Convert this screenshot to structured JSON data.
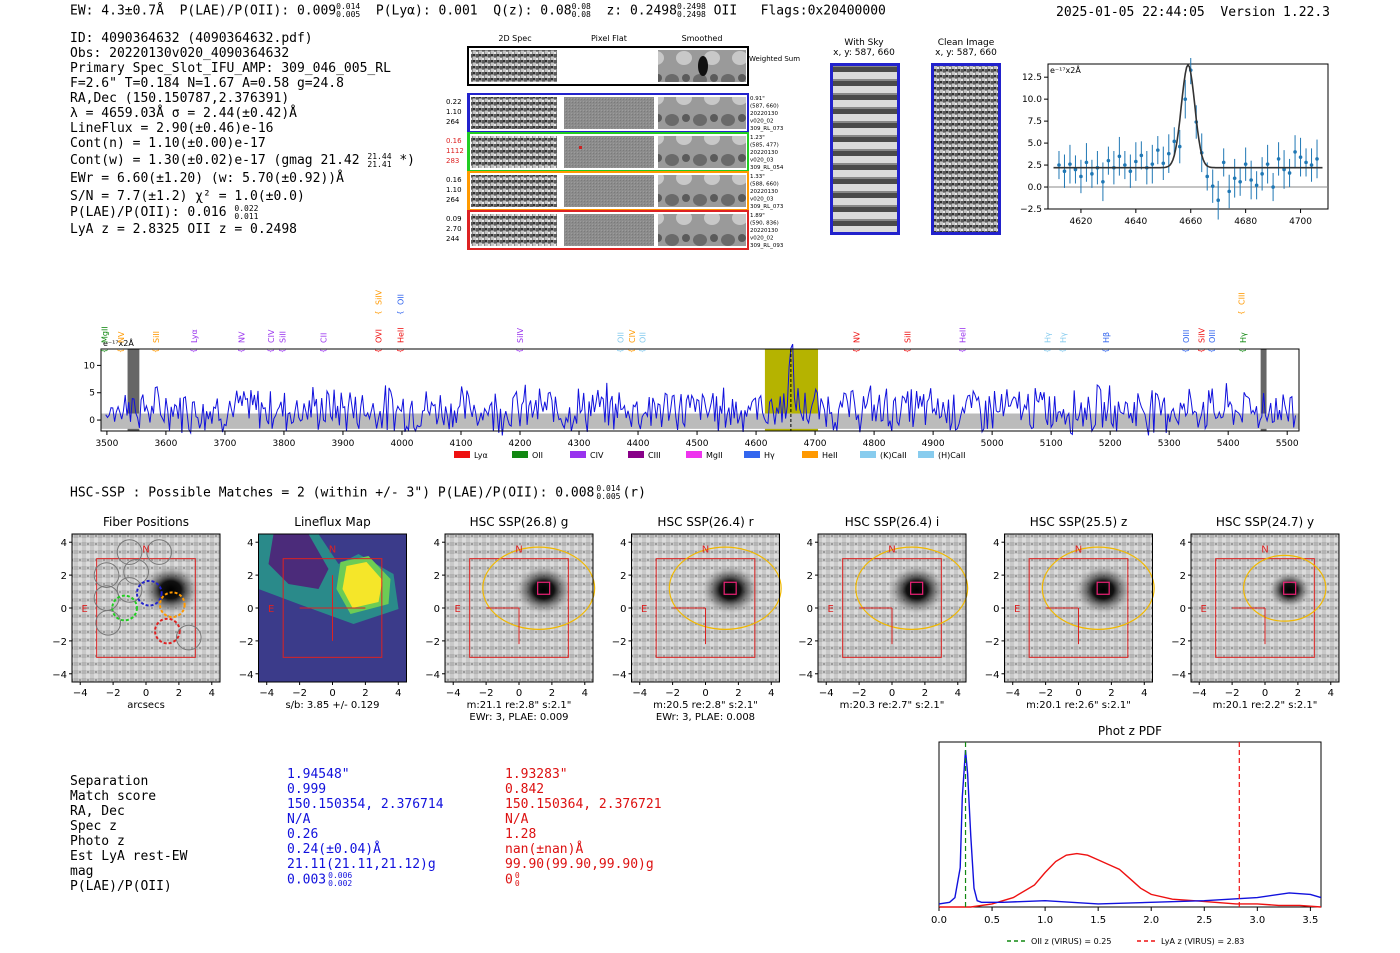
{
  "header": {
    "ew": "EW: 4.3±0.7Å",
    "plae_label": "P(LAE)/P(OII): 0.009",
    "plae_sup": "0.014",
    "plae_sub": "0.005",
    "plya": "P(Lyα): 0.001",
    "qz_label": "Q(z): 0.08",
    "qz_sup": "0.08",
    "qz_sub": "0.08",
    "z_label": "z: 0.2498",
    "z_sup": "0.2498",
    "z_sub": "0.2498",
    "z_line": "OII",
    "flags": "Flags:0x20400000",
    "timestamp": "2025-01-05 22:44:05",
    "version": "Version 1.22.3"
  },
  "info": {
    "id": "ID: 4090364632 (4090364632.pdf)",
    "obs": "Obs: 20220130v020_4090364632",
    "primary": "Primary Spec_Slot_IFU_AMP: 309_046_005_RL",
    "fparams": "F=2.6\"  T=0.184  N=1.67  A=0.58  g=24.8",
    "radec": "RA,Dec (150.150787,2.376391)",
    "lambda": "λ = 4659.03Å  σ = 2.44(±0.42)Å",
    "lineflux": "LineFlux = 2.90(±0.46)e-16",
    "contn": "Cont(n) = 1.10(±0.00)e-17",
    "contw": "Cont(w) = 1.30(±0.02)e-17 (gmag 21.42",
    "contw_sup": "21.44",
    "contw_sub": "21.41",
    "contw_end": "*)",
    "ewr": "EWr = 6.60(±1.20) (w: 5.70(±0.92))Å",
    "sn": "S/N = 7.7(±1.2)  χ² = 1.0(±0.0)",
    "plae": "P(LAE)/P(OII): 0.016",
    "plae_sup": "0.022",
    "plae_sub": "0.011",
    "lyaz": "LyA z = 2.8325  OII z = 0.2498"
  },
  "cutouts": {
    "col_headers": [
      "2D Spec",
      "Pixel Flat",
      "Smoothed"
    ],
    "weighted_sum": "Weighted Sum",
    "rows": [
      {
        "nums": [
          "0.22",
          "1.10",
          "264"
        ],
        "right": [
          "0.91\"",
          "(587, 660)",
          "20220130",
          "v020_02",
          "309_RL_073"
        ],
        "color": "#2222cc",
        "numcolor": "#000000"
      },
      {
        "nums": [
          "0.16",
          "1112",
          "283"
        ],
        "right": [
          "1.23\"",
          "(585, 477)",
          "20220130",
          "v020_03",
          "309_RL_054"
        ],
        "color": "#22cc22",
        "numcolor": "#dd2222"
      },
      {
        "nums": [
          "0.16",
          "1.10",
          "264"
        ],
        "right": [
          "1.33\"",
          "(588, 660)",
          "20220130",
          "v020_03",
          "309_RL_073"
        ],
        "color": "#ff9900",
        "numcolor": "#000000"
      },
      {
        "nums": [
          "0.09",
          "2.70",
          "244"
        ],
        "right": [
          "1.89\"",
          "(590, 836)",
          "20220130",
          "v020_02",
          "309_RL_093"
        ],
        "color": "#dd2222",
        "numcolor": "#000000"
      }
    ],
    "with_sky_title": "With Sky",
    "with_sky_coords": "x, y: 587, 660",
    "clean_title": "Clean Image",
    "clean_coords": "x, y: 587, 660"
  },
  "chart_data": [
    {
      "type": "line",
      "title": "",
      "ylabel": "e⁻¹⁷x2Å",
      "ylim": [
        -2.5,
        14
      ],
      "xlim": [
        4608,
        4710
      ],
      "xticks": [
        "4620",
        "4640",
        "4660",
        "4680",
        "4700"
      ],
      "yticks": [
        "−2.5",
        "0.0",
        "2.5",
        "5.0",
        "7.5",
        "10.0",
        "12.5"
      ],
      "points_x": [
        4612,
        4614,
        4616,
        4618,
        4620,
        4622,
        4624,
        4626,
        4628,
        4630,
        4632,
        4634,
        4636,
        4638,
        4640,
        4642,
        4644,
        4646,
        4648,
        4650,
        4652,
        4654,
        4656,
        4658,
        4660,
        4662,
        4664,
        4666,
        4668,
        4670,
        4672,
        4674,
        4676,
        4678,
        4680,
        4682,
        4684,
        4686,
        4688,
        4690,
        4692,
        4694,
        4696,
        4698,
        4700,
        4702,
        4704,
        4706
      ],
      "points_y": [
        2.5,
        1.8,
        2.6,
        2.0,
        1.2,
        2.8,
        1.5,
        2.2,
        0.6,
        3.0,
        2.2,
        3.5,
        2.5,
        1.8,
        2.9,
        3.6,
        2.2,
        2.6,
        4.2,
        2.7,
        3.8,
        5.2,
        4.6,
        10.0,
        13.3,
        7.4,
        3.9,
        1.2,
        0.1,
        -1.5,
        2.8,
        -0.5,
        1.0,
        0.6,
        2.6,
        0.8,
        0.2,
        1.5,
        2.6,
        0.0,
        3.2,
        2.0,
        1.6,
        4.0,
        3.4,
        2.8,
        2.5,
        3.2
      ],
      "fit_peak": 11.7,
      "fit_center": 4659.03,
      "fit_sigma": 2.44,
      "fit_base": 2.2
    },
    {
      "type": "line",
      "ylabel": "e⁻¹⁷x2Å",
      "ylim": [
        -2,
        13
      ],
      "xlim": [
        3490,
        5520
      ],
      "xticks": [
        "3500",
        "3600",
        "3700",
        "3800",
        "3900",
        "4000",
        "4100",
        "4200",
        "4300",
        "4400",
        "4500",
        "4600",
        "4700",
        "4800",
        "4900",
        "5000",
        "5100",
        "5200",
        "5300",
        "5400",
        "5500"
      ],
      "yticks": [
        "0",
        "5",
        "10"
      ],
      "highlight_range": [
        4615,
        4705
      ],
      "line_peak_x": 4659,
      "masked": [
        3535,
        3555,
        5455,
        5465
      ],
      "legend": [
        {
          "label": "Lyα",
          "color": "#ee1111"
        },
        {
          "label": "OII",
          "color": "#118811"
        },
        {
          "label": "CIV",
          "color": "#9933ee"
        },
        {
          "label": "CIII",
          "color": "#880088"
        },
        {
          "label": "MgII",
          "color": "#ee33ee"
        },
        {
          "label": "Hγ",
          "color": "#3366ee"
        },
        {
          "label": "HeII",
          "color": "#ff9900"
        },
        {
          "label": "(K)CaII",
          "color": "#88ccee"
        },
        {
          "label": "(H)CaII",
          "color": "#88ccee"
        }
      ],
      "line_labels": [
        {
          "t": "MgII",
          "x": 3501,
          "c": "#118811",
          "row": 0
        },
        {
          "t": "NV",
          "x": 3529,
          "c": "#ff9900",
          "row": 0
        },
        {
          "t": "SiII",
          "x": 3588,
          "c": "#ff9900",
          "row": 0
        },
        {
          "t": "Lyα",
          "x": 3653,
          "c": "#9933ee",
          "row": 0
        },
        {
          "t": "NV",
          "x": 3733,
          "c": "#9933ee",
          "row": 0
        },
        {
          "t": "CIV",
          "x": 3783,
          "c": "#9933ee",
          "row": 0
        },
        {
          "t": "SiII",
          "x": 3803,
          "c": "#9933ee",
          "row": 0
        },
        {
          "t": "CII",
          "x": 3872,
          "c": "#9933ee",
          "row": 0
        },
        {
          "t": "OVI",
          "x": 3965,
          "c": "#ee1111",
          "row": 0
        },
        {
          "t": "HeII",
          "x": 4003,
          "c": "#ee1111",
          "row": 0
        },
        {
          "t": "SiIV",
          "x": 3965,
          "c": "#ff9900",
          "row": 1
        },
        {
          "t": "OII",
          "x": 4003,
          "c": "#3366ee",
          "row": 1
        },
        {
          "t": "SiIV",
          "x": 4205,
          "c": "#9933ee",
          "row": 0
        },
        {
          "t": "OII",
          "x": 4375,
          "c": "#88ccee",
          "row": 0
        },
        {
          "t": "CIV",
          "x": 4395,
          "c": "#ff9900",
          "row": 0
        },
        {
          "t": "OII",
          "x": 4413,
          "c": "#88ccee",
          "row": 0
        },
        {
          "t": "NV",
          "x": 4775,
          "c": "#ee1111",
          "row": 0
        },
        {
          "t": "SiII",
          "x": 4862,
          "c": "#ee1111",
          "row": 0
        },
        {
          "t": "HeII",
          "x": 4955,
          "c": "#9933ee",
          "row": 0
        },
        {
          "t": "Hγ",
          "x": 5099,
          "c": "#88ccee",
          "row": 0
        },
        {
          "t": "Hγ",
          "x": 5125,
          "c": "#88ccee",
          "row": 0
        },
        {
          "t": "Hβ",
          "x": 5198,
          "c": "#3366ee",
          "row": 0
        },
        {
          "t": "OIII",
          "x": 5334,
          "c": "#3366ee",
          "row": 0
        },
        {
          "t": "SiIV",
          "x": 5360,
          "c": "#ee1111",
          "row": 0
        },
        {
          "t": "OIII",
          "x": 5378,
          "c": "#3366ee",
          "row": 0
        },
        {
          "t": "CIII",
          "x": 5428,
          "c": "#ff9900",
          "row": 1
        },
        {
          "t": "Hγ",
          "x": 5430,
          "c": "#118811",
          "row": 0
        }
      ]
    },
    {
      "type": "line",
      "title": "Phot z PDF",
      "xlim": [
        0.0,
        3.6
      ],
      "xticks": [
        "0.0",
        "0.5",
        "1.0",
        "1.5",
        "2.0",
        "2.5",
        "3.0",
        "3.5"
      ],
      "series": [
        {
          "name": "OII z (VIRUS) = 0.25",
          "color": "#118811",
          "marker": 0.25
        },
        {
          "name": "LyA z (VIRUS) = 2.83",
          "color": "#ee1111",
          "marker": 2.83
        }
      ],
      "blue_x": [
        0.0,
        0.1,
        0.15,
        0.2,
        0.22,
        0.25,
        0.27,
        0.3,
        0.33,
        0.36,
        0.4,
        0.6,
        1.0,
        1.5,
        2.0,
        2.5,
        3.0,
        3.3,
        3.5,
        3.6
      ],
      "blue_y": [
        0.02,
        0.03,
        0.06,
        0.25,
        0.7,
        1.0,
        0.85,
        0.45,
        0.12,
        0.04,
        0.03,
        0.03,
        0.04,
        0.02,
        0.03,
        0.04,
        0.06,
        0.09,
        0.08,
        0.06
      ],
      "red_x": [
        0.0,
        0.2,
        0.3,
        0.5,
        0.7,
        0.9,
        1.0,
        1.1,
        1.2,
        1.3,
        1.4,
        1.5,
        1.6,
        1.7,
        1.8,
        1.9,
        2.0,
        2.2,
        2.4,
        2.6,
        2.8,
        3.0,
        3.2,
        3.4,
        3.6
      ],
      "red_y": [
        0.0,
        0.0,
        0.0,
        0.02,
        0.06,
        0.14,
        0.22,
        0.29,
        0.33,
        0.34,
        0.33,
        0.3,
        0.27,
        0.24,
        0.18,
        0.12,
        0.08,
        0.05,
        0.04,
        0.03,
        0.02,
        0.02,
        0.01,
        0.01,
        0.0
      ]
    }
  ],
  "hsc": {
    "header": "HSC-SSP : Possible Matches = 2 (within +/- 3\")  P(LAE)/P(OII): 0.008",
    "header_sup": "0.014",
    "header_sub": "0.005",
    "header_end": "(r)",
    "axis_ticks": [
      "−4",
      "−2",
      "0",
      "2",
      "4"
    ],
    "panels": [
      {
        "title": "Fiber Positions",
        "cap1": "arcsecs",
        "cap2": ""
      },
      {
        "title": "Lineflux Map",
        "cap1": "s/b: 3.85 +/- 0.129",
        "cap2": ""
      },
      {
        "title": "HSC SSP(26.8) g",
        "cap1": "m:21.1  re:2.8\"  s:2.1\"",
        "cap2": "EWr: 3, PLAE: 0.009"
      },
      {
        "title": "HSC SSP(26.4) r",
        "cap1": "m:20.5  re:2.8\"  s:2.1\"",
        "cap2": "EWr: 3, PLAE: 0.008"
      },
      {
        "title": "HSC SSP(26.4) i",
        "cap1": "m:20.3  re:2.7\"  s:2.1\"",
        "cap2": ""
      },
      {
        "title": "HSC SSP(25.5) z",
        "cap1": "m:20.1  re:2.6\"  s:2.1\"",
        "cap2": ""
      },
      {
        "title": "HSC SSP(24.7) y",
        "cap1": "m:20.1  re:2.2\"  s:2.1\"",
        "cap2": ""
      }
    ],
    "north_label": "N",
    "east_label": "E"
  },
  "match_table": {
    "labels": [
      "Separation",
      "Match score",
      "RA, Dec",
      "Spec z",
      "Photo z",
      "Est LyA rest-EW",
      "mag",
      "P(LAE)/P(OII)"
    ],
    "col1": [
      "1.94548\"",
      "0.999",
      "150.150354, 2.376714",
      "N/A",
      "0.26",
      "0.24(±0.04)Å",
      "21.11(21.11,21.12)g",
      "0.003"
    ],
    "col1_plae_sup": "0.006",
    "col1_plae_sub": "0.002",
    "col2": [
      "1.93283\"",
      "0.842",
      "150.150364, 2.376721",
      "N/A",
      "1.28",
      "nan(±nan)Å",
      "99.90(99.90,99.90)g",
      "0"
    ],
    "col2_plae_sup": "0",
    "col2_plae_sub": "0"
  }
}
